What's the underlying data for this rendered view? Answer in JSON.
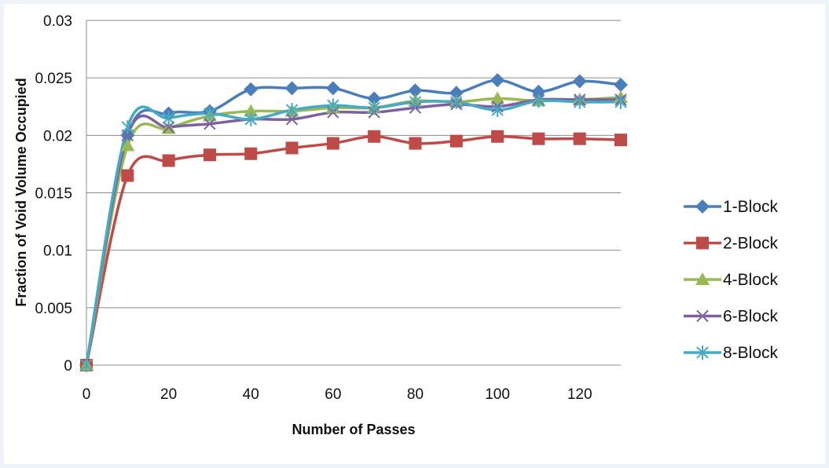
{
  "chart_data": {
    "type": "line",
    "title": "",
    "xlabel": "Number of Passes",
    "ylabel": "Fraction of Void Volume Occupied",
    "xlim": [
      0,
      130
    ],
    "ylim": [
      0,
      0.03
    ],
    "x_ticks": [
      "0",
      "20",
      "40",
      "60",
      "80",
      "100",
      "120"
    ],
    "y_ticks": [
      "0",
      "0.005",
      "0.01",
      "0.015",
      "0.02",
      "0.025",
      "0.03"
    ],
    "x": [
      0,
      10,
      20,
      30,
      40,
      50,
      60,
      70,
      80,
      90,
      100,
      110,
      120,
      130
    ],
    "grid": "horizontal",
    "legend_position": "right",
    "series": [
      {
        "name": "1-Block",
        "color": "#4a7ebb",
        "marker": "diamond",
        "values": [
          0,
          0.02,
          0.0219,
          0.0221,
          0.024,
          0.0241,
          0.0241,
          0.0232,
          0.0239,
          0.0237,
          0.0248,
          0.0238,
          0.0247,
          0.0244
        ]
      },
      {
        "name": "2-Block",
        "color": "#be4b48",
        "marker": "square",
        "values": [
          0,
          0.0165,
          0.0178,
          0.0183,
          0.0184,
          0.0189,
          0.0193,
          0.0199,
          0.0193,
          0.0195,
          0.0199,
          0.0197,
          0.0197,
          0.0196
        ]
      },
      {
        "name": "4-Block",
        "color": "#98b954",
        "marker": "triangle",
        "values": [
          0,
          0.0191,
          0.0206,
          0.0217,
          0.0221,
          0.0221,
          0.0224,
          0.0224,
          0.023,
          0.0229,
          0.0232,
          0.023,
          0.0231,
          0.0233
        ]
      },
      {
        "name": "6-Block",
        "color": "#7d60a0",
        "marker": "x",
        "values": [
          0,
          0.02,
          0.0207,
          0.021,
          0.0214,
          0.0214,
          0.022,
          0.022,
          0.0224,
          0.0227,
          0.0225,
          0.0231,
          0.0231,
          0.0231
        ]
      },
      {
        "name": "8-Block",
        "color": "#46aac5",
        "marker": "star",
        "values": [
          0,
          0.0207,
          0.0215,
          0.0219,
          0.0214,
          0.0222,
          0.0226,
          0.0224,
          0.0229,
          0.0229,
          0.0222,
          0.023,
          0.0229,
          0.0229
        ]
      }
    ]
  }
}
